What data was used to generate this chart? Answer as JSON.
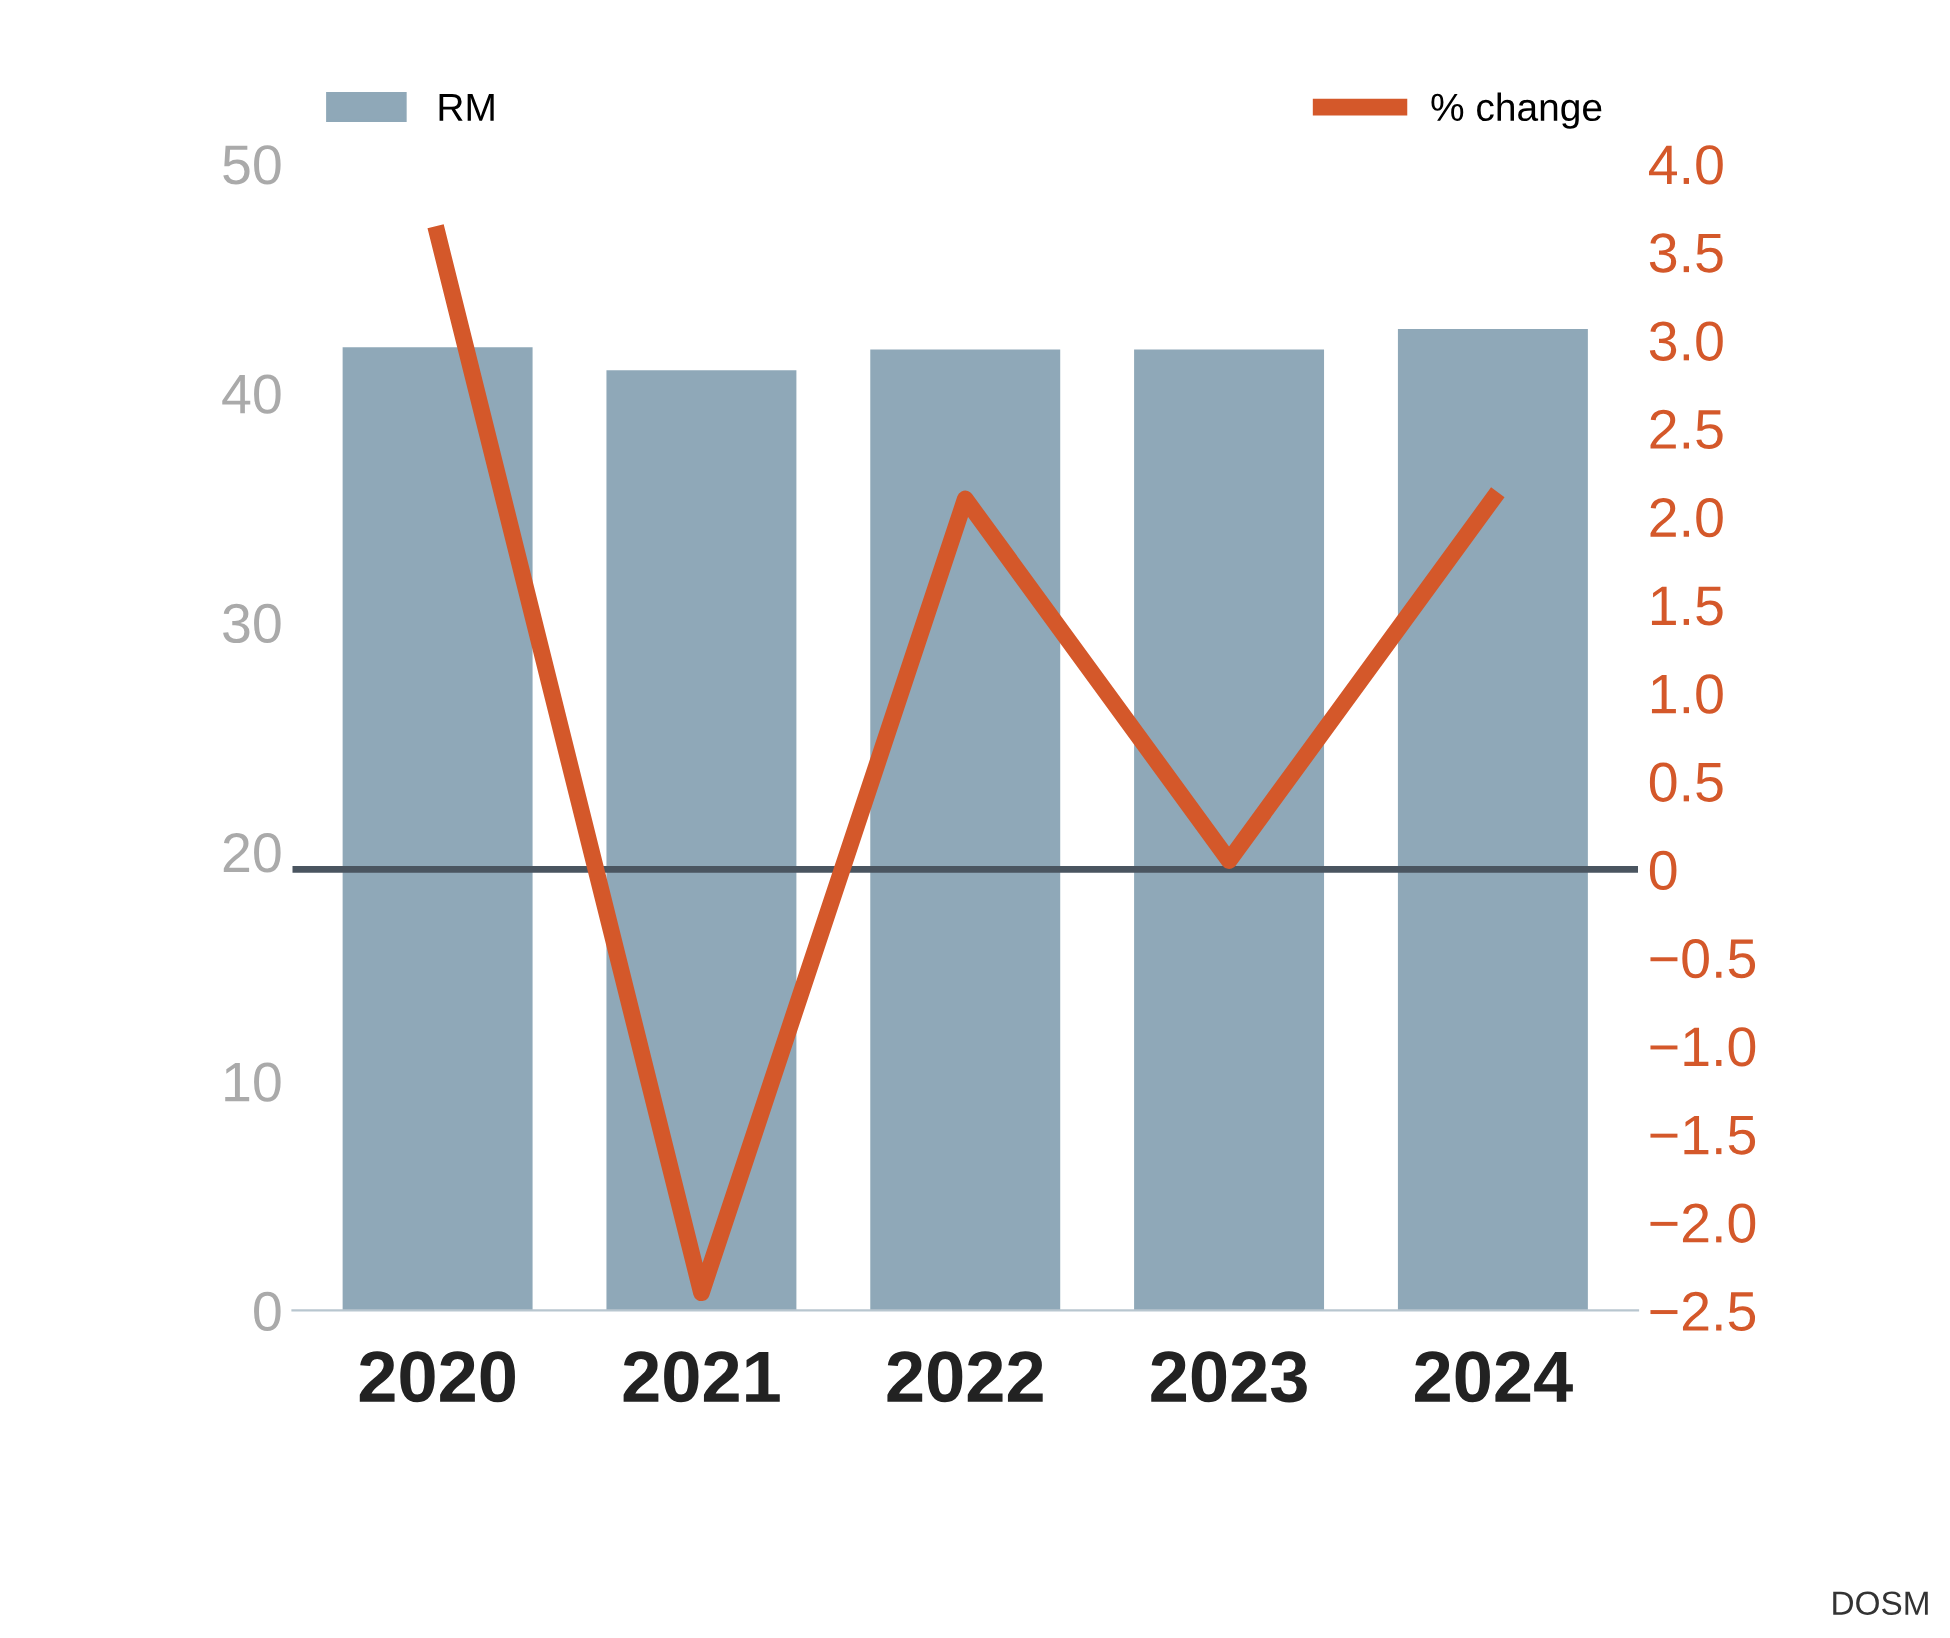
{
  "chart_data": {
    "type": "bar",
    "categories": [
      "2020",
      "2021",
      "2022",
      "2023",
      "2024"
    ],
    "series": [
      {
        "name": "RM",
        "color": "#8fa8b8",
        "values": [
          42.0,
          41.0,
          41.9,
          41.9,
          42.8
        ]
      },
      {
        "name": "% change",
        "type": "line",
        "axis": "y2",
        "color": "#d4582a",
        "values": [
          3.6,
          -2.4,
          2.1,
          0.05,
          2.1
        ]
      }
    ],
    "ylim": [
      0,
      50
    ],
    "yticks": [
      0,
      10,
      20,
      30,
      40,
      50
    ],
    "y2lim": [
      -2.5,
      4.0
    ],
    "y2ticks": [
      {
        "value": 4.0,
        "label": "4.0"
      },
      {
        "value": 3.5,
        "label": "3.5"
      },
      {
        "value": 3.0,
        "label": "3.0"
      },
      {
        "value": 2.5,
        "label": "2.5"
      },
      {
        "value": 2.0,
        "label": "2.0"
      },
      {
        "value": 1.5,
        "label": "1.5"
      },
      {
        "value": 1.0,
        "label": "1.0"
      },
      {
        "value": 0.5,
        "label": "0.5"
      },
      {
        "value": 0,
        "label": "0"
      },
      {
        "value": -0.5,
        "label": "−0.5"
      },
      {
        "value": -1.0,
        "label": "−1.0"
      },
      {
        "value": -1.5,
        "label": "−1.5"
      },
      {
        "value": -2.0,
        "label": "−2.0"
      },
      {
        "value": -2.5,
        "label": "−2.5"
      }
    ],
    "ref_lines": [
      {
        "axis": "y2",
        "value": 0,
        "color": "#4a5560"
      }
    ],
    "legend": "top",
    "grid": false,
    "marker": "none",
    "line_style": "solid",
    "annotations": [
      "DOSM"
    ]
  }
}
